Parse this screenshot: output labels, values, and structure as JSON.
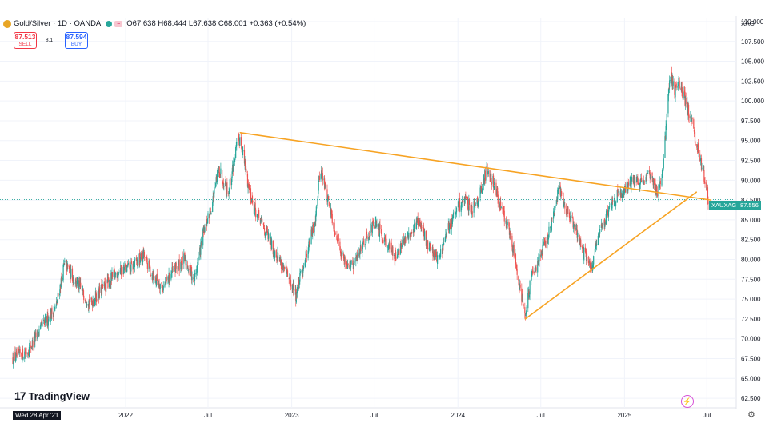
{
  "header": {
    "symbol": "Gold/Silver · 1D · OANDA",
    "equal_sign": "=",
    "ohlc": "O67.638 H68.444 L67.638 C68.001 +0.363 (+0.54%)"
  },
  "trade": {
    "sell_price": "87.513",
    "sell_label": "SELL",
    "spread": "8.1",
    "buy_price": "87.594",
    "buy_label": "BUY"
  },
  "branding": {
    "logo_text": "TradingView",
    "logo_mark": "17"
  },
  "crosshair_date": "Wed 28 Apr '21",
  "axis_corner_label": "XAG",
  "current_price": {
    "symbol_label": "XAUXAG",
    "value": "87.556"
  },
  "colors": {
    "up": "#26a69a",
    "down": "#ef5350",
    "trendline": "#f7a323",
    "price_line": "#26a69a"
  },
  "chart_data": {
    "type": "candlestick",
    "title": "Gold/Silver · 1D · OANDA",
    "x_labels": [
      "2022",
      "Jul",
      "2023",
      "Jul",
      "2024",
      "Jul",
      "2025",
      "Jul"
    ],
    "y_ticks": [
      62.5,
      65.0,
      67.5,
      70.0,
      72.5,
      75.0,
      77.5,
      80.0,
      82.5,
      85.0,
      87.5,
      90.0,
      92.5,
      95.0,
      97.5,
      100.0,
      102.5,
      105.0,
      107.5,
      110.0
    ],
    "ylim": [
      61.5,
      110.5
    ],
    "xlim": [
      "2021-04-28",
      "2025-08-31"
    ],
    "last_price": 87.556,
    "price_path": [
      [
        "2021-04-28",
        67.5
      ],
      [
        "2021-06-01",
        68.5
      ],
      [
        "2021-07-01",
        71.5
      ],
      [
        "2021-08-01",
        74.0
      ],
      [
        "2021-08-20",
        79.5
      ],
      [
        "2021-09-15",
        77.0
      ],
      [
        "2021-10-15",
        74.5
      ],
      [
        "2021-11-15",
        76.5
      ],
      [
        "2021-12-15",
        78.5
      ],
      [
        "2022-01-15",
        79.0
      ],
      [
        "2022-02-10",
        80.5
      ],
      [
        "2022-03-01",
        78.0
      ],
      [
        "2022-03-25",
        76.5
      ],
      [
        "2022-04-15",
        78.5
      ],
      [
        "2022-05-10",
        80.0
      ],
      [
        "2022-06-01",
        77.5
      ],
      [
        "2022-06-20",
        83.0
      ],
      [
        "2022-07-10",
        87.0
      ],
      [
        "2022-07-25",
        91.5
      ],
      [
        "2022-08-15",
        88.5
      ],
      [
        "2022-09-01",
        94.0
      ],
      [
        "2022-09-10",
        95.5
      ],
      [
        "2022-09-25",
        90.0
      ],
      [
        "2022-10-10",
        86.5
      ],
      [
        "2022-11-01",
        84.0
      ],
      [
        "2022-11-20",
        81.5
      ],
      [
        "2022-12-10",
        79.5
      ],
      [
        "2022-12-25",
        77.5
      ],
      [
        "2023-01-10",
        75.5
      ],
      [
        "2023-02-01",
        80.5
      ],
      [
        "2023-02-20",
        84.5
      ],
      [
        "2023-03-05",
        91.5
      ],
      [
        "2023-03-20",
        88.0
      ],
      [
        "2023-04-05",
        84.0
      ],
      [
        "2023-04-25",
        80.0
      ],
      [
        "2023-05-15",
        79.0
      ],
      [
        "2023-06-10",
        82.5
      ],
      [
        "2023-07-01",
        84.5
      ],
      [
        "2023-07-25",
        82.5
      ],
      [
        "2023-08-15",
        80.5
      ],
      [
        "2023-09-10",
        82.5
      ],
      [
        "2023-10-05",
        85.0
      ],
      [
        "2023-10-25",
        82.0
      ],
      [
        "2023-11-20",
        80.0
      ],
      [
        "2023-12-15",
        84.5
      ],
      [
        "2024-01-10",
        87.5
      ],
      [
        "2024-02-01",
        86.5
      ],
      [
        "2024-02-20",
        88.5
      ],
      [
        "2024-03-05",
        91.5
      ],
      [
        "2024-03-20",
        89.5
      ],
      [
        "2024-04-05",
        86.5
      ],
      [
        "2024-04-20",
        84.0
      ],
      [
        "2024-05-05",
        80.5
      ],
      [
        "2024-05-18",
        76.0
      ],
      [
        "2024-05-28",
        73.0
      ],
      [
        "2024-06-10",
        77.5
      ],
      [
        "2024-06-25",
        80.0
      ],
      [
        "2024-07-15",
        82.5
      ],
      [
        "2024-08-01",
        86.0
      ],
      [
        "2024-08-10",
        89.5
      ],
      [
        "2024-08-25",
        86.5
      ],
      [
        "2024-09-15",
        84.0
      ],
      [
        "2024-10-05",
        80.5
      ],
      [
        "2024-10-22",
        79.0
      ],
      [
        "2024-11-05",
        83.0
      ],
      [
        "2024-11-25",
        86.0
      ],
      [
        "2024-12-15",
        88.0
      ],
      [
        "2025-01-10",
        89.5
      ],
      [
        "2025-02-01",
        90.0
      ],
      [
        "2025-02-25",
        90.5
      ],
      [
        "2025-03-15",
        88.5
      ],
      [
        "2025-03-28",
        92.0
      ],
      [
        "2025-04-05",
        99.5
      ],
      [
        "2025-04-12",
        104.0
      ],
      [
        "2025-04-20",
        101.0
      ],
      [
        "2025-05-01",
        102.5
      ],
      [
        "2025-05-15",
        100.0
      ],
      [
        "2025-05-28",
        97.5
      ],
      [
        "2025-06-08",
        94.5
      ],
      [
        "2025-06-20",
        91.5
      ],
      [
        "2025-06-28",
        90.0
      ],
      [
        "2025-07-04",
        87.6
      ]
    ],
    "trendlines": [
      {
        "from": [
          "2022-09-10",
          96.0
        ],
        "to": [
          "2025-07-10",
          87.5
        ]
      },
      {
        "from": [
          "2024-05-28",
          72.5
        ],
        "to": [
          "2025-06-08",
          88.5
        ]
      }
    ]
  }
}
